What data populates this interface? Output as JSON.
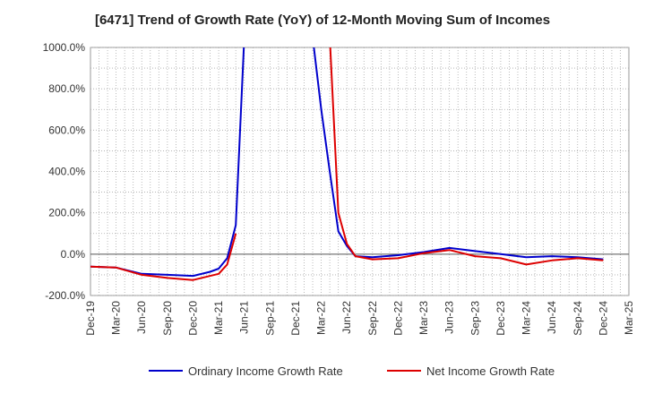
{
  "chart_data": {
    "type": "line",
    "title": "[6471]  Trend of Growth Rate (YoY) of 12-Month Moving Sum of Incomes",
    "xlabel": "",
    "ylabel": "",
    "ylim": [
      -200,
      1000
    ],
    "yticks": [
      -200,
      0,
      200,
      400,
      600,
      800,
      1000
    ],
    "ytick_labels": [
      "-200.0%",
      "0.0%",
      "200.0%",
      "400.0%",
      "600.0%",
      "800.0%",
      "1000.0%"
    ],
    "xticks": [
      "2019-12",
      "2020-03",
      "2020-06",
      "2020-09",
      "2020-12",
      "2021-03",
      "2021-06",
      "2021-09",
      "2021-12",
      "2022-03",
      "2022-06",
      "2022-09",
      "2022-12",
      "2023-03",
      "2023-06",
      "2023-09",
      "2023-12",
      "2024-03",
      "2024-06",
      "2024-09",
      "2024-12",
      "2025-03"
    ],
    "xtick_labels": [
      "Dec-19",
      "Mar-20",
      "Jun-20",
      "Sep-20",
      "Dec-20",
      "Mar-21",
      "Jun-21",
      "Sep-21",
      "Dec-21",
      "Mar-22",
      "Jun-22",
      "Sep-22",
      "Dec-22",
      "Mar-23",
      "Jun-23",
      "Sep-23",
      "Dec-23",
      "Mar-24",
      "Jun-24",
      "Sep-24",
      "Dec-24",
      "Mar-25"
    ],
    "xlim": [
      "2019-12",
      "2025-03"
    ],
    "grid": true,
    "legend_position": "bottom",
    "series": [
      {
        "name": "Ordinary Income Growth Rate",
        "color": "#0000cc",
        "points": [
          [
            "2019-12",
            -60
          ],
          [
            "2020-03",
            -65
          ],
          [
            "2020-06",
            -95
          ],
          [
            "2020-09",
            -100
          ],
          [
            "2020-12",
            -105
          ],
          [
            "2021-02",
            -85
          ],
          [
            "2021-03",
            -70
          ],
          [
            "2021-04",
            -20
          ],
          [
            "2021-05",
            140
          ],
          [
            "2021-06",
            1050
          ],
          [
            "2022-02",
            1050
          ],
          [
            "2022-03",
            700
          ],
          [
            "2022-04",
            400
          ],
          [
            "2022-05",
            110
          ],
          [
            "2022-06",
            40
          ],
          [
            "2022-07",
            -10
          ],
          [
            "2022-09",
            -15
          ],
          [
            "2022-12",
            -5
          ],
          [
            "2023-03",
            10
          ],
          [
            "2023-06",
            30
          ],
          [
            "2023-09",
            15
          ],
          [
            "2023-12",
            0
          ],
          [
            "2024-03",
            -15
          ],
          [
            "2024-06",
            -10
          ],
          [
            "2024-09",
            -15
          ],
          [
            "2024-12",
            -25
          ]
        ]
      },
      {
        "name": "Net Income Growth Rate",
        "color": "#dd0000",
        "points": [
          [
            "2019-12",
            -60
          ],
          [
            "2020-03",
            -65
          ],
          [
            "2020-06",
            -100
          ],
          [
            "2020-09",
            -115
          ],
          [
            "2020-12",
            -125
          ],
          [
            "2021-03",
            -95
          ],
          [
            "2021-04",
            -50
          ],
          [
            "2021-05",
            100
          ],
          [
            "2021-06",
            null
          ],
          [
            "2022-04",
            1050
          ],
          [
            "2022-05",
            200
          ],
          [
            "2022-06",
            50
          ],
          [
            "2022-07",
            -10
          ],
          [
            "2022-09",
            -25
          ],
          [
            "2022-12",
            -20
          ],
          [
            "2023-03",
            5
          ],
          [
            "2023-06",
            20
          ],
          [
            "2023-09",
            -10
          ],
          [
            "2023-12",
            -20
          ],
          [
            "2024-03",
            -50
          ],
          [
            "2024-06",
            -30
          ],
          [
            "2024-09",
            -20
          ],
          [
            "2024-12",
            -30
          ]
        ]
      }
    ]
  }
}
